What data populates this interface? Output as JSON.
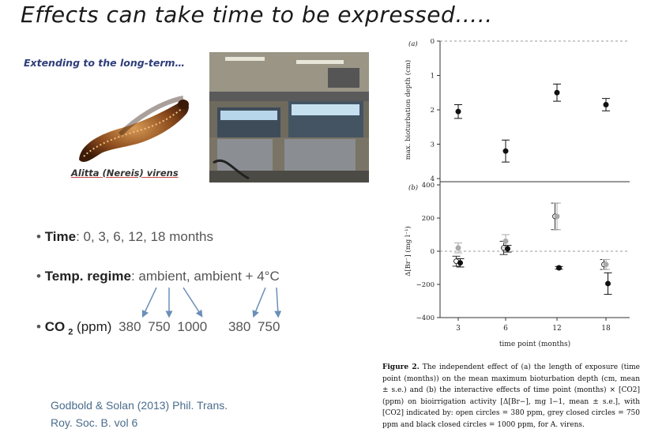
{
  "slide": {
    "title": "Effects can take time to be expressed…..",
    "subtitle": "Extending to the long-term…",
    "worm_caption": "Alitta (Nereis) virens",
    "worm_icon": "ragworm-image",
    "photo_icon": "mesocosm-lab-photo"
  },
  "bullets": {
    "time_label": "Time",
    "time_value": ": 0, 3, 6, 12, 18 months",
    "temp_label": "Temp. regime",
    "temp_value": ": ambient, ambient + 4°C",
    "co2_label": "CO",
    "co2_sub": "2",
    "co2_unit": " (ppm) ",
    "co2_values": [
      "380",
      "750",
      "1000",
      "380",
      "750"
    ]
  },
  "reference": {
    "line1": "Godbold & Solan (2013) Phil. Trans.",
    "line2": "Roy. Soc. B. vol 6"
  },
  "figure_caption": {
    "label": "Figure 2.",
    "text": " The independent effect of (a) the length of exposure (time point (months)) on the mean maximum bioturbation depth (cm, mean ± s.e.) and (b) the interactive effects of time point (months) × [CO2] (ppm) on bioirrigation activity [Δ[Br−], mg l−1, mean ± s.e.], with [CO2] indicated by: open circles = 380 ppm, grey closed circles = 750 ppm and black closed circles = 1000 ppm, for A. virens."
  },
  "chart_data": [
    {
      "type": "scatter",
      "panel_label": "(a)",
      "ylabel": "max. bioturbation depth (cm)",
      "xlabel": "",
      "x_categories": [
        "3",
        "6",
        "12",
        "18"
      ],
      "ylim": [
        0,
        4
      ],
      "y_inverted": true,
      "yticks": [
        "0",
        "1",
        "2",
        "3",
        "4"
      ],
      "series": [
        {
          "values": [
            2.05,
            3.2,
            1.5,
            1.85
          ],
          "errors": [
            0.2,
            0.32,
            0.25,
            0.18
          ],
          "color": "#111111"
        }
      ]
    },
    {
      "type": "scatter",
      "panel_label": "(b)",
      "ylabel": "Δ[Br⁻] (mg l⁻¹)",
      "xlabel": "time point (months)",
      "x_categories": [
        "3",
        "6",
        "12",
        "18"
      ],
      "ylim": [
        -400,
        400
      ],
      "yticks": [
        "400",
        "200",
        "0",
        "−200",
        "−400"
      ],
      "series": [
        {
          "values": [
            -60,
            20,
            210,
            -80
          ],
          "errors": [
            30,
            40,
            80,
            30
          ],
          "fill": "#ffffff",
          "stroke": "#333333"
        },
        {
          "values": [
            20,
            60,
            210,
            -80
          ],
          "errors": [
            30,
            40,
            80,
            30
          ],
          "fill": "#aaaaaa",
          "stroke": "#aaaaaa"
        },
        {
          "values": [
            -70,
            15,
            -100,
            -195
          ],
          "errors": [
            25,
            20,
            8,
            65
          ],
          "fill": "#111111",
          "stroke": "#111111"
        }
      ]
    }
  ]
}
